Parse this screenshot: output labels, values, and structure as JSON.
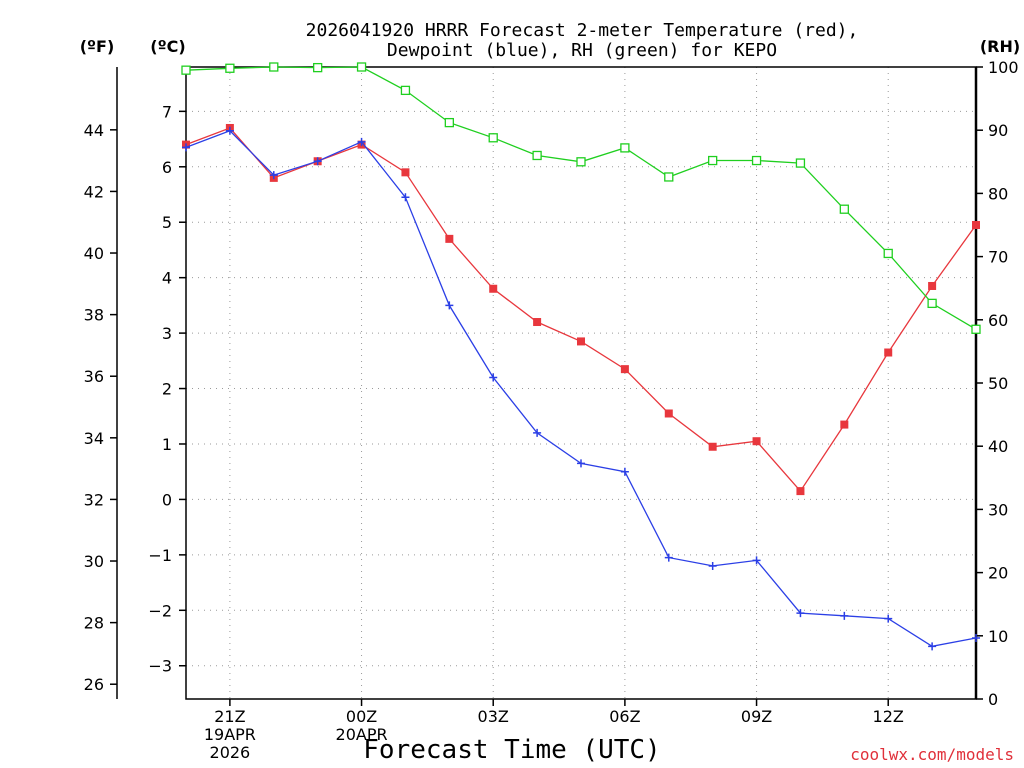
{
  "chart_data": {
    "type": "line",
    "title_lines": [
      "2026041920 HRRR Forecast 2-meter Temperature (red),",
      "Dewpoint (blue), RH (green) for KEPO"
    ],
    "xlabel": "Forecast Time (UTC)",
    "credit": "coolwx.com/models",
    "units": {
      "fahrenheit": "(ºF)",
      "celsius": "(ºC)",
      "rh": "(RH)"
    },
    "x_hours": [
      20,
      21,
      22,
      23,
      24,
      25,
      26,
      27,
      28,
      29,
      30,
      31,
      32,
      33,
      34,
      35,
      36,
      37,
      38
    ],
    "xlim": [
      20,
      38
    ],
    "x_ticks": [
      {
        "hour": 21,
        "lines": [
          "21Z",
          "19APR",
          "2026"
        ]
      },
      {
        "hour": 24,
        "lines": [
          "00Z",
          "20APR"
        ]
      },
      {
        "hour": 27,
        "lines": [
          "03Z"
        ]
      },
      {
        "hour": 30,
        "lines": [
          "06Z"
        ]
      },
      {
        "hour": 33,
        "lines": [
          "09Z"
        ]
      },
      {
        "hour": 36,
        "lines": [
          "12Z"
        ]
      }
    ],
    "celsius_axis": {
      "ylim": [
        -3.6,
        7.8
      ],
      "ticks": [
        -3,
        -2,
        -1,
        0,
        1,
        2,
        3,
        4,
        5,
        6,
        7
      ]
    },
    "fahrenheit_axis": {
      "ticks": [
        26,
        28,
        30,
        32,
        34,
        36,
        38,
        40,
        42,
        44
      ]
    },
    "rh_axis": {
      "ylim": [
        0,
        100
      ],
      "ticks": [
        0,
        10,
        20,
        30,
        40,
        50,
        60,
        70,
        80,
        90,
        100
      ]
    },
    "series": [
      {
        "name": "Temperature",
        "unit": "C",
        "color": "#e8373d",
        "marker": "filled-square",
        "values": [
          6.4,
          6.7,
          5.8,
          6.1,
          6.4,
          5.9,
          4.7,
          3.8,
          3.2,
          2.85,
          2.35,
          1.55,
          0.95,
          1.05,
          0.15,
          1.35,
          2.65,
          3.85,
          4.95
        ]
      },
      {
        "name": "Dewpoint",
        "unit": "C",
        "color": "#2b3fe6",
        "marker": "plus",
        "values": [
          6.35,
          6.65,
          5.85,
          6.1,
          6.45,
          5.45,
          3.5,
          2.2,
          1.2,
          0.65,
          0.5,
          -1.05,
          -1.2,
          -1.1,
          -2.05,
          -2.1,
          -2.15,
          -2.65,
          -2.5
        ]
      },
      {
        "name": "Relative Humidity",
        "unit": "%",
        "color": "#1fcf1f",
        "marker": "open-square",
        "values": [
          99.5,
          99.8,
          100,
          99.9,
          100,
          96.3,
          91.2,
          88.8,
          86,
          85,
          87.2,
          82.6,
          85.2,
          85.2,
          84.8,
          77.5,
          70.5,
          62.6,
          58.5
        ]
      }
    ]
  }
}
